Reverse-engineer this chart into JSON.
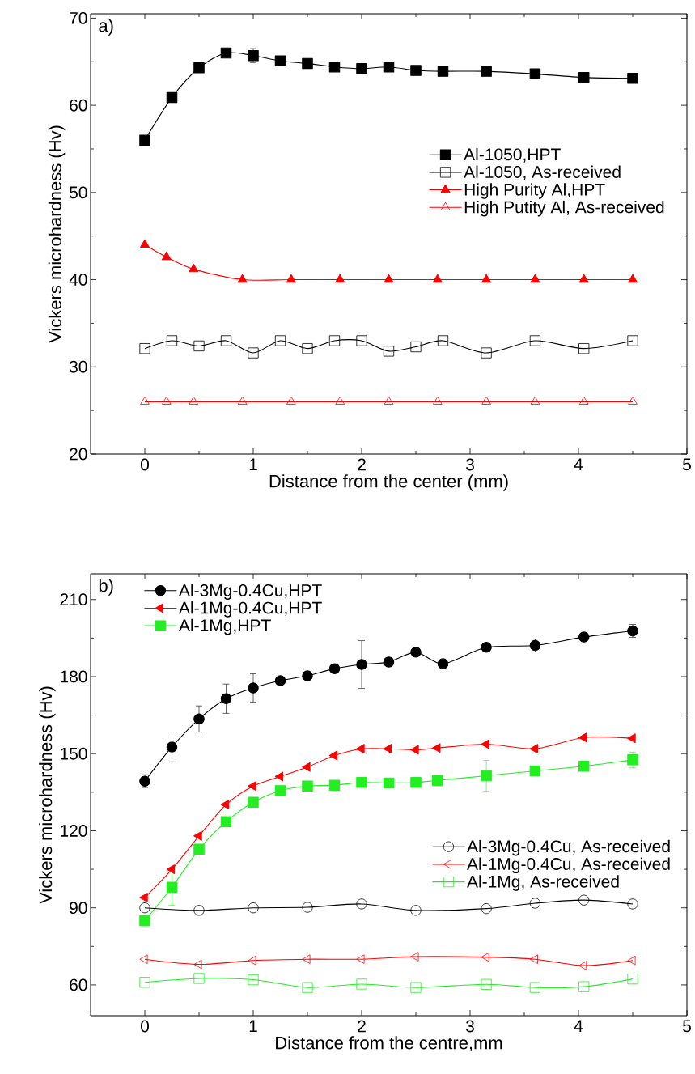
{
  "chart_data": [
    {
      "type": "line",
      "annotations": [
        "a)"
      ],
      "xlabel": "Distance from the center (mm)",
      "ylabel": "Vickers microhardness (Hv)",
      "xlim": [
        -0.5,
        5
      ],
      "ylim": [
        20,
        70.5
      ],
      "xticks": [
        0,
        1,
        2,
        3,
        4,
        5
      ],
      "yticks": [
        20,
        30,
        40,
        50,
        60,
        70
      ],
      "legend": "right",
      "line_style": "solid",
      "series": [
        {
          "name": "Al-1050,HPT",
          "color": "#000000",
          "marker": "square",
          "x": [
            0,
            0.25,
            0.5,
            0.75,
            1,
            1.25,
            1.5,
            1.75,
            2,
            2.25,
            2.5,
            2.75,
            3.15,
            3.6,
            4.05,
            4.5
          ],
          "values": [
            56.0,
            60.9,
            64.3,
            66.0,
            65.7,
            65.1,
            64.8,
            64.4,
            64.2,
            64.4,
            64.0,
            63.9,
            63.9,
            63.6,
            63.2,
            63.1
          ],
          "errors": [
            null,
            null,
            null,
            null,
            0.8,
            null,
            null,
            null,
            null,
            null,
            null,
            null,
            null,
            null,
            null,
            null
          ]
        },
        {
          "name": "Al-1050, As-received",
          "color": "#000000",
          "marker": "square-open",
          "x": [
            0,
            0.25,
            0.5,
            0.75,
            1,
            1.25,
            1.5,
            1.75,
            2,
            2.25,
            2.5,
            2.75,
            3.15,
            3.6,
            4.05,
            4.5
          ],
          "values": [
            32.1,
            33.0,
            32.4,
            33.0,
            31.6,
            33.0,
            32.1,
            33.0,
            33.0,
            31.8,
            32.3,
            33.0,
            31.6,
            33.0,
            32.1,
            33.0
          ]
        },
        {
          "name": "High Purity Al,HPT",
          "color": "#ff0000",
          "marker": "triangle",
          "x": [
            0,
            0.2,
            0.45,
            0.9,
            1.35,
            1.8,
            2.25,
            2.7,
            3.15,
            3.6,
            4.05,
            4.5
          ],
          "values": [
            44.0,
            42.6,
            41.2,
            40,
            40,
            40,
            40,
            40,
            40,
            40,
            40,
            40
          ]
        },
        {
          "name": "High Putity Al, As-received",
          "color": "#ff0000",
          "marker": "triangle-open",
          "x": [
            0,
            0.2,
            0.45,
            0.9,
            1.35,
            1.8,
            2.25,
            2.7,
            3.15,
            3.6,
            4.05,
            4.5
          ],
          "values": [
            26,
            26,
            26,
            26,
            26,
            26,
            26,
            26,
            26,
            26,
            26,
            26
          ]
        }
      ]
    },
    {
      "type": "line",
      "annotations": [
        "b)"
      ],
      "xlabel": "Distance from the centre,mm",
      "ylabel": "Vickers microhardness (Hv)",
      "xlim": [
        -0.5,
        5
      ],
      "ylim": [
        48,
        220
      ],
      "xticks": [
        0,
        1,
        2,
        3,
        4,
        5
      ],
      "yticks": [
        60,
        90,
        120,
        150,
        180,
        210
      ],
      "legend": [
        "top left",
        "bottom right"
      ],
      "line_style": "solid",
      "series": [
        {
          "name": "Al-3Mg-0.4Cu,HPT",
          "color": "#000000",
          "marker": "circle",
          "x": [
            0,
            0.25,
            0.5,
            0.75,
            1,
            1.25,
            1.5,
            1.75,
            2,
            2.25,
            2.5,
            2.75,
            3.15,
            3.6,
            4.05,
            4.5
          ],
          "values": [
            139.3,
            152.6,
            163.5,
            171.4,
            175.6,
            178.4,
            180.3,
            183.1,
            184.7,
            185.7,
            189.5,
            185.0,
            191.4,
            192.1,
            195.4,
            197.8
          ],
          "errors": [
            2.5,
            5.8,
            5.1,
            5.7,
            5.5,
            null,
            null,
            null,
            9.3,
            null,
            null,
            null,
            null,
            2.5,
            null,
            2.5
          ]
        },
        {
          "name": "Al-1Mg-0.4Cu,HPT",
          "color": "#ff0000",
          "marker": "triangle-left",
          "x": [
            0,
            0.25,
            0.5,
            0.75,
            1,
            1.25,
            1.5,
            1.75,
            2,
            2.25,
            2.5,
            2.7,
            3.15,
            3.6,
            4.05,
            4.5
          ],
          "values": [
            94,
            105,
            118.0,
            130.2,
            137.4,
            141.1,
            144.8,
            149.3,
            151.9,
            151.9,
            151.5,
            152.2,
            153.7,
            151.9,
            156.3,
            156.0
          ]
        },
        {
          "name": "Al-1Mg,HPT",
          "color": "#22ee22",
          "marker": "square",
          "x": [
            0,
            0.25,
            0.5,
            0.75,
            1,
            1.25,
            1.5,
            1.75,
            2,
            2.25,
            2.5,
            2.7,
            3.15,
            3.6,
            4.05,
            4.5
          ],
          "values": [
            85,
            98,
            112.8,
            123.5,
            131.1,
            135.6,
            137.4,
            137.7,
            138.8,
            138.6,
            138.8,
            139.6,
            141.4,
            143.3,
            145.1,
            147.6
          ],
          "errors": [
            2,
            7,
            null,
            null,
            null,
            null,
            null,
            null,
            null,
            null,
            null,
            null,
            6,
            null,
            null,
            3
          ]
        },
        {
          "name": "Al-3Mg-0.4Cu, As-received",
          "color": "#000000",
          "marker": "circle-open",
          "x": [
            0,
            0.5,
            1,
            1.5,
            2,
            2.5,
            3.15,
            3.6,
            4.05,
            4.5
          ],
          "values": [
            90,
            89,
            90,
            90.2,
            91.5,
            89,
            89.7,
            91.8,
            93,
            91.5
          ]
        },
        {
          "name": "Al-1Mg-0.4Cu, As-received",
          "color": "#ff0000",
          "marker": "triangle-left-open",
          "x": [
            0,
            0.5,
            1,
            1.5,
            2,
            2.5,
            3.15,
            3.6,
            4.05,
            4.5
          ],
          "values": [
            70,
            68,
            69.5,
            70,
            70,
            71,
            70.8,
            70,
            67.5,
            69.5
          ]
        },
        {
          "name": "Al-1Mg, As-received",
          "color": "#22ee22",
          "marker": "square-open",
          "x": [
            0,
            0.5,
            1,
            1.5,
            2,
            2.5,
            3.15,
            3.6,
            4.05,
            4.5
          ],
          "values": [
            61,
            62.5,
            62,
            59,
            60.3,
            59,
            60.2,
            59,
            59.3,
            62.3
          ]
        }
      ]
    }
  ]
}
